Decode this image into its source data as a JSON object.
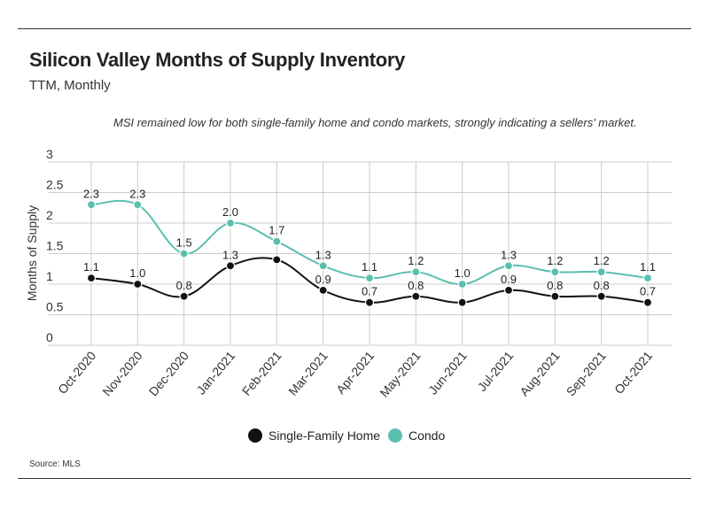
{
  "header": {
    "title": "Silicon Valley Months of Supply Inventory",
    "subtitle": "TTM, Monthly",
    "annotation": "MSI remained low for both single-family home and condo markets, strongly indicating a sellers' market."
  },
  "footer": {
    "source": "Source:  MLS"
  },
  "colors": {
    "sfh": "#111111",
    "condo": "#5bbfb0",
    "grid": "#cccccc",
    "rule": "#333333"
  },
  "chart_data": {
    "type": "line",
    "title": "Silicon Valley Months of Supply Inventory",
    "subtitle": "TTM, Monthly",
    "ylabel": "Months of Supply",
    "xlabel": "",
    "ylim": [
      0,
      3
    ],
    "yticks": [
      "0",
      "0.5",
      "1",
      "1.5",
      "2",
      "2.5",
      "3"
    ],
    "grid": true,
    "legend_position": "bottom-center",
    "categories": [
      "Oct-2020",
      "Nov-2020",
      "Dec-2020",
      "Jan-2021",
      "Feb-2021",
      "Mar-2021",
      "Apr-2021",
      "May-2021",
      "Jun-2021",
      "Jul-2021",
      "Aug-2021",
      "Sep-2021",
      "Oct-2021"
    ],
    "series": [
      {
        "name": "Single-Family Home",
        "color": "#111111",
        "values": [
          1.1,
          1.0,
          0.8,
          1.3,
          1.4,
          0.9,
          0.7,
          0.8,
          0.7,
          0.9,
          0.8,
          0.8,
          0.7
        ],
        "labels": [
          "1.1",
          "1.0",
          "0.8",
          "1.3",
          "",
          "0.9",
          "0.7",
          "0.8",
          "",
          "0.9",
          "0.8",
          "0.8",
          "0.7"
        ]
      },
      {
        "name": "Condo",
        "color": "#5bbfb0",
        "values": [
          2.3,
          2.3,
          1.5,
          2.0,
          1.7,
          1.3,
          1.1,
          1.2,
          1.0,
          1.3,
          1.2,
          1.2,
          1.1
        ],
        "labels": [
          "2.3",
          "2.3",
          "1.5",
          "2.0",
          "1.7",
          "1.3",
          "1.1",
          "1.2",
          "1.0",
          "1.3",
          "1.2",
          "1.2",
          "1.1"
        ]
      }
    ]
  }
}
